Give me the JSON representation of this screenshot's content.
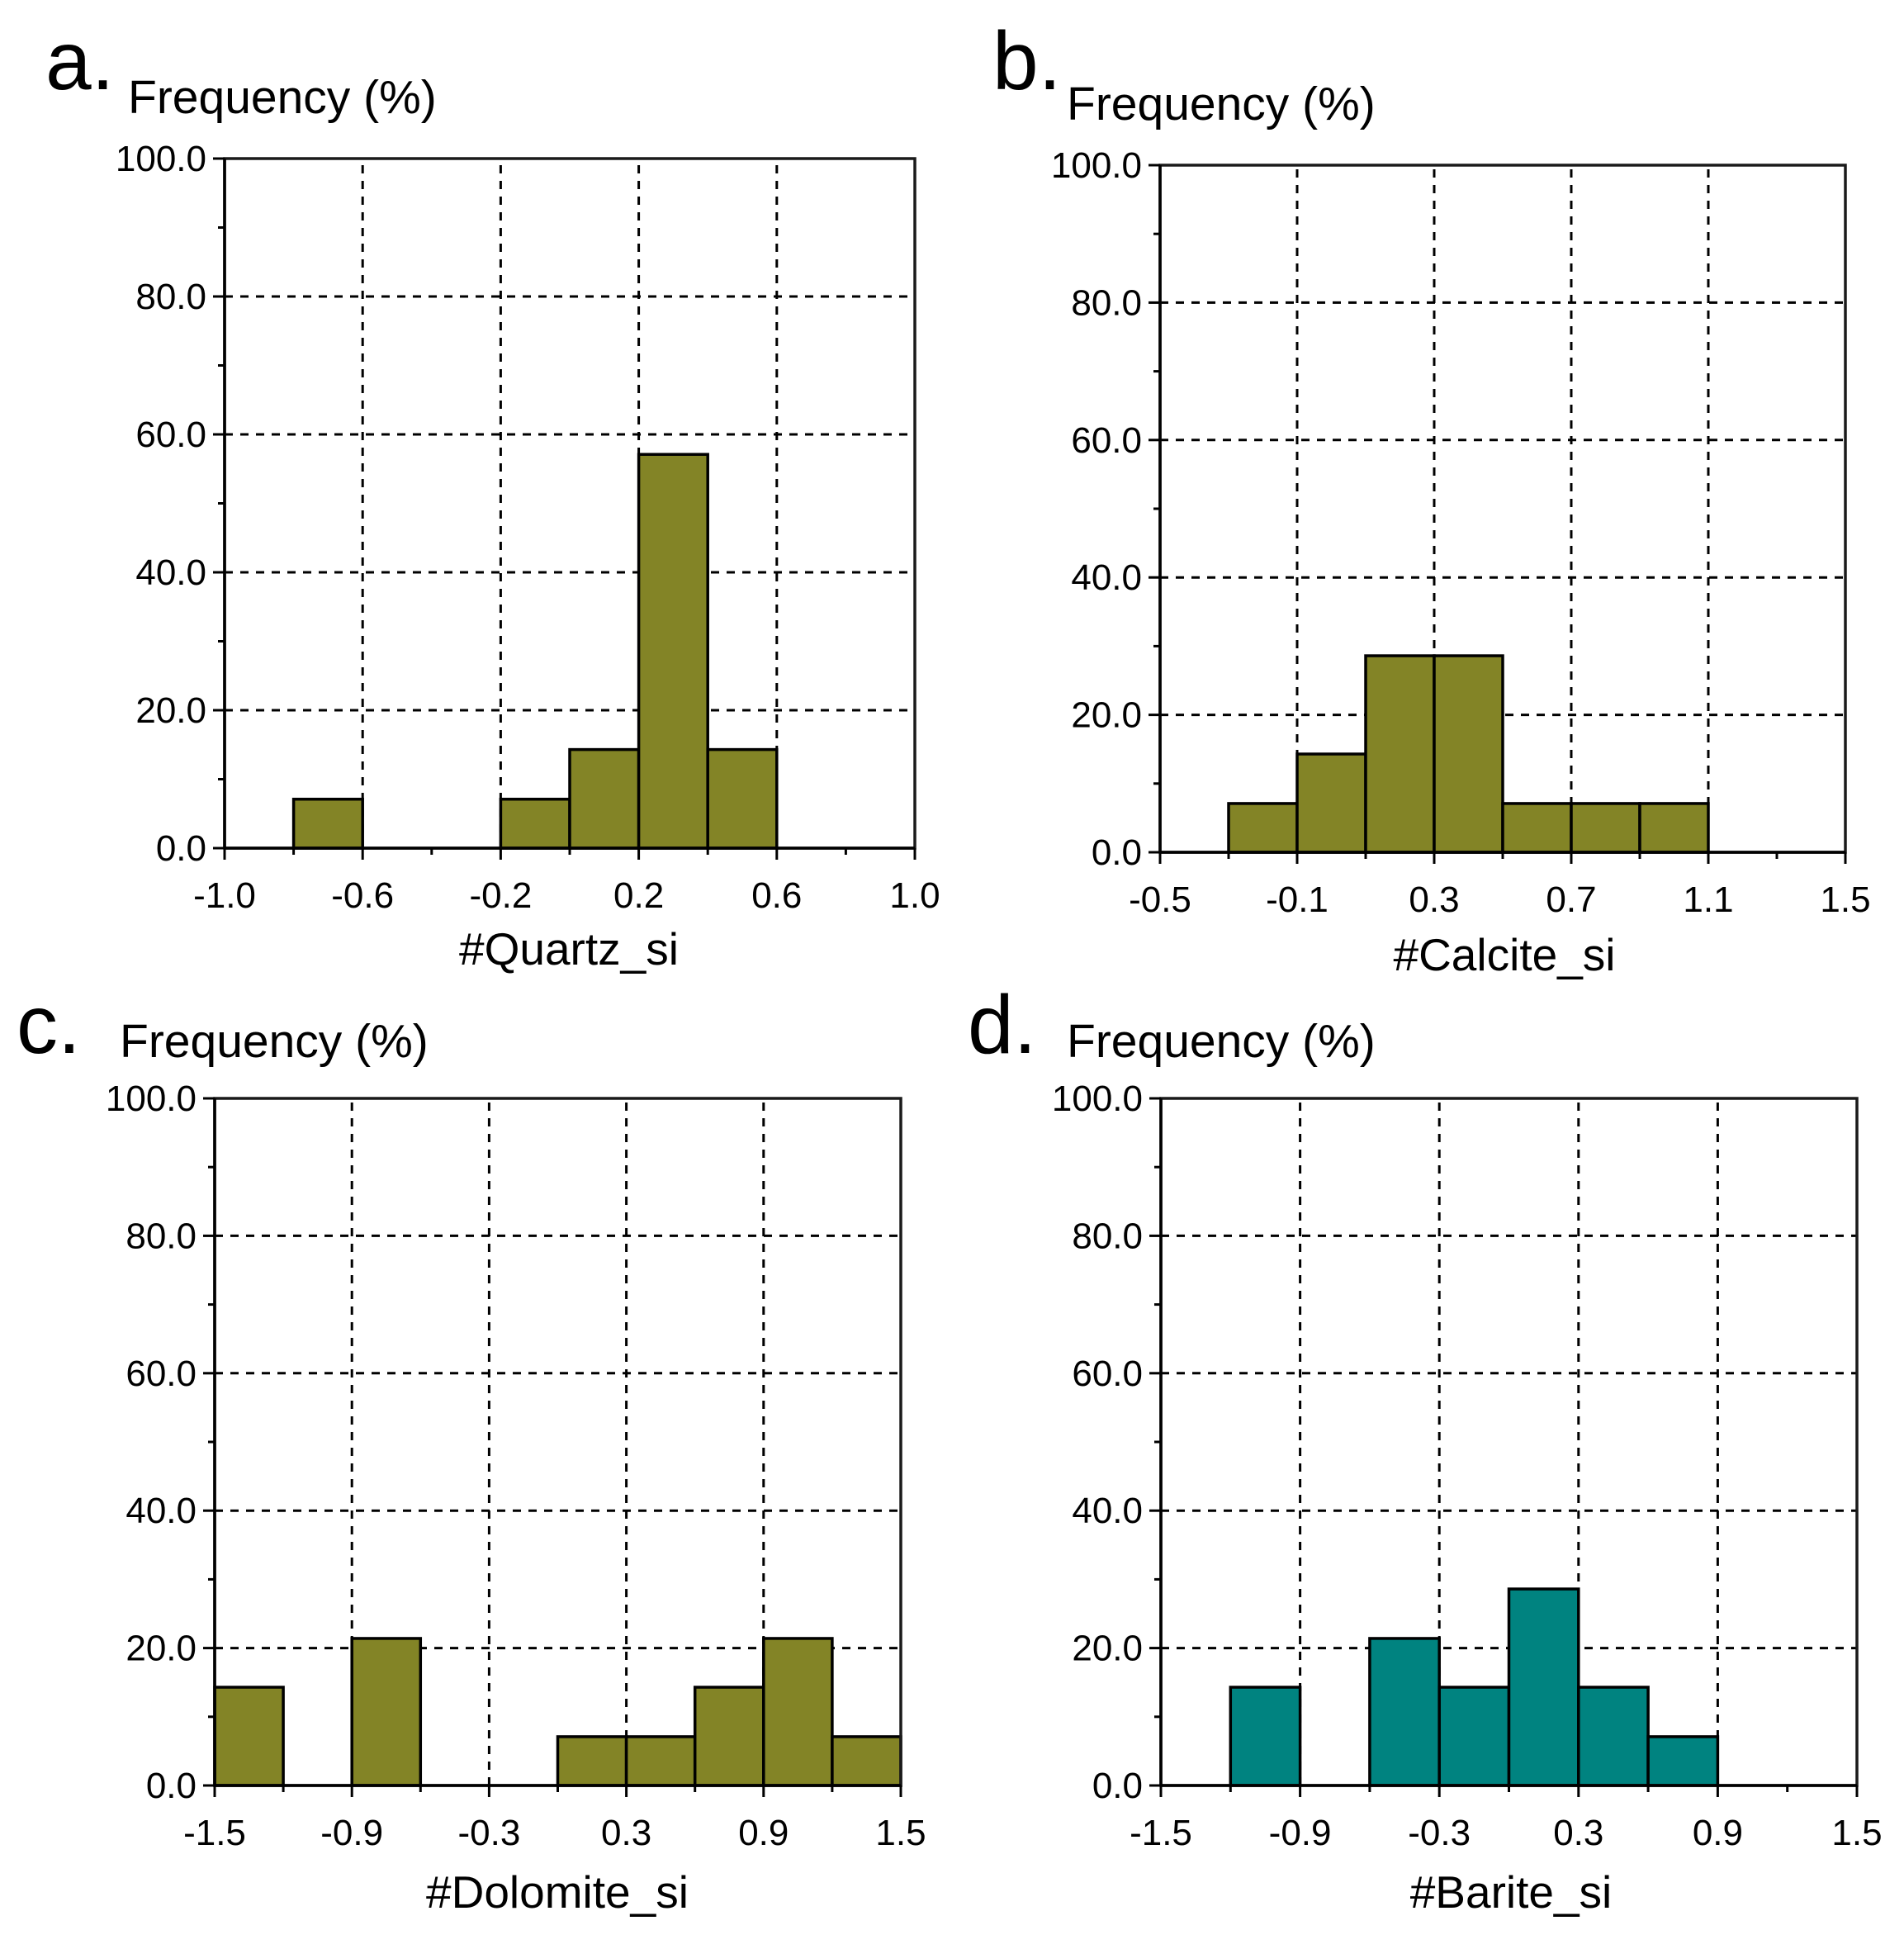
{
  "chart_data": [
    {
      "type": "bar",
      "panel_label": "a.",
      "title": "",
      "ylabel": "Frequency (%)",
      "xlabel": "#Quartz_si",
      "xlim": [
        -1.0,
        1.0
      ],
      "ylim": [
        0,
        100
      ],
      "xticks": [
        -1.0,
        -0.6,
        -0.2,
        0.2,
        0.6,
        1.0
      ],
      "xtick_labels": [
        "-1.0",
        "-0.6",
        "-0.2",
        "0.2",
        "0.6",
        "1.0"
      ],
      "yticks": [
        0,
        20,
        40,
        60,
        80,
        100
      ],
      "ytick_labels": [
        "0.0",
        "20.0",
        "40.0",
        "60.0",
        "80.0",
        "100.0"
      ],
      "bin_width": 0.2,
      "grid": true,
      "bar_color": "#838426",
      "bins": [
        {
          "start": -0.8,
          "end": -0.6,
          "value": 7.1
        },
        {
          "start": -0.2,
          "end": 0.0,
          "value": 7.1
        },
        {
          "start": 0.0,
          "end": 0.2,
          "value": 14.3
        },
        {
          "start": 0.2,
          "end": 0.4,
          "value": 57.1
        },
        {
          "start": 0.4,
          "end": 0.6,
          "value": 14.3
        }
      ]
    },
    {
      "type": "bar",
      "panel_label": "b.",
      "title": "",
      "ylabel": "Frequency (%)",
      "xlabel": "#Calcite_si",
      "xlim": [
        -0.5,
        1.5
      ],
      "ylim": [
        0,
        100
      ],
      "xticks": [
        -0.5,
        -0.1,
        0.3,
        0.7,
        1.1,
        1.5
      ],
      "xtick_labels": [
        "-0.5",
        "-0.1",
        "0.3",
        "0.7",
        "1.1",
        "1.5"
      ],
      "yticks": [
        0,
        20,
        40,
        60,
        80,
        100
      ],
      "ytick_labels": [
        "0.0",
        "20.0",
        "40.0",
        "60.0",
        "80.0",
        "100.0"
      ],
      "bin_width": 0.2,
      "grid": true,
      "bar_color": "#838426",
      "bins": [
        {
          "start": -0.3,
          "end": -0.1,
          "value": 7.1
        },
        {
          "start": -0.1,
          "end": 0.1,
          "value": 14.3
        },
        {
          "start": 0.1,
          "end": 0.3,
          "value": 28.6
        },
        {
          "start": 0.3,
          "end": 0.5,
          "value": 28.6
        },
        {
          "start": 0.5,
          "end": 0.7,
          "value": 7.1
        },
        {
          "start": 0.7,
          "end": 0.9,
          "value": 7.1
        },
        {
          "start": 0.9,
          "end": 1.1,
          "value": 7.1
        }
      ]
    },
    {
      "type": "bar",
      "panel_label": "c.",
      "title": "",
      "ylabel": "Frequency (%)",
      "xlabel": "#Dolomite_si",
      "xlim": [
        -1.5,
        1.5
      ],
      "ylim": [
        0,
        100
      ],
      "xticks": [
        -1.5,
        -0.9,
        -0.3,
        0.3,
        0.9,
        1.5
      ],
      "xtick_labels": [
        "-1.5",
        "-0.9",
        "-0.3",
        "0.3",
        "0.9",
        "1.5"
      ],
      "yticks": [
        0,
        20,
        40,
        60,
        80,
        100
      ],
      "ytick_labels": [
        "0.0",
        "20.0",
        "40.0",
        "60.0",
        "80.0",
        "100.0"
      ],
      "bin_width": 0.3,
      "grid": true,
      "bar_color": "#838426",
      "bins": [
        {
          "start": -1.5,
          "end": -1.2,
          "value": 14.3
        },
        {
          "start": -0.9,
          "end": -0.6,
          "value": 21.4
        },
        {
          "start": 0.0,
          "end": 0.3,
          "value": 7.1
        },
        {
          "start": 0.3,
          "end": 0.6,
          "value": 7.1
        },
        {
          "start": 0.6,
          "end": 0.9,
          "value": 14.3
        },
        {
          "start": 0.9,
          "end": 1.2,
          "value": 21.4
        },
        {
          "start": 1.2,
          "end": 1.5,
          "value": 7.1
        }
      ]
    },
    {
      "type": "bar",
      "panel_label": "d.",
      "title": "",
      "ylabel": "Frequency (%)",
      "xlabel": "#Barite_si",
      "xlim": [
        -1.5,
        1.5
      ],
      "ylim": [
        0,
        100
      ],
      "xticks": [
        -1.5,
        -0.9,
        -0.3,
        0.3,
        0.9,
        1.5
      ],
      "xtick_labels": [
        "-1.5",
        "-0.9",
        "-0.3",
        "0.3",
        "0.9",
        "1.5"
      ],
      "yticks": [
        0,
        20,
        40,
        60,
        80,
        100
      ],
      "ytick_labels": [
        "0.0",
        "20.0",
        "40.0",
        "60.0",
        "80.0",
        "100.0"
      ],
      "bin_width": 0.3,
      "grid": true,
      "bar_color": "#008380",
      "bins": [
        {
          "start": -1.2,
          "end": -0.9,
          "value": 14.3
        },
        {
          "start": -0.6,
          "end": -0.3,
          "value": 21.4
        },
        {
          "start": -0.3,
          "end": 0.0,
          "value": 14.3
        },
        {
          "start": 0.0,
          "end": 0.3,
          "value": 28.6
        },
        {
          "start": 0.3,
          "end": 0.6,
          "value": 14.3
        },
        {
          "start": 0.6,
          "end": 0.9,
          "value": 7.1
        }
      ]
    }
  ]
}
